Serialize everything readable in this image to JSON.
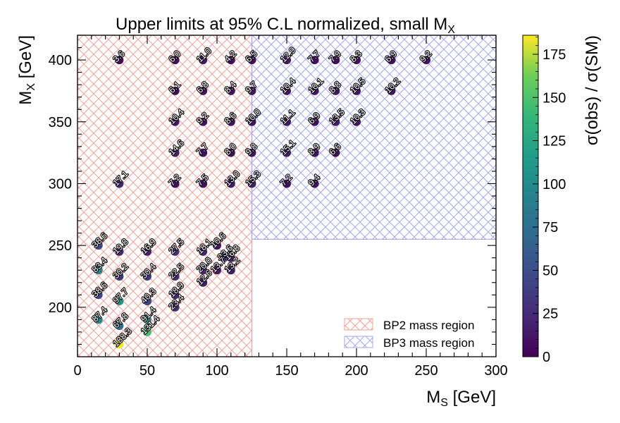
{
  "chart_data": {
    "type": "scatter",
    "title": "Upper limits at 95% C.L normalized, small M",
    "title_subscript": "X",
    "xlabel": "M",
    "xlabel_subscript": "S",
    "xlabel_unit": " [GeV]",
    "ylabel": "M",
    "ylabel_subscript": "X",
    "ylabel_unit": " [GeV]",
    "colorbar_label": "σ(obs) / σ(SM)",
    "colormap": "viridis",
    "xlim": [
      0,
      300
    ],
    "ylim": [
      160,
      420
    ],
    "clim": [
      0,
      186
    ],
    "xticks": [
      "0",
      "50",
      "100",
      "150",
      "200",
      "250",
      "300"
    ],
    "yticks": [
      "200",
      "250",
      "300",
      "350",
      "400"
    ],
    "cticks": [
      "0",
      "25",
      "50",
      "75",
      "100",
      "125",
      "150",
      "175"
    ],
    "grid": false,
    "regions": [
      {
        "name": "BP2 mass region",
        "color": "#f4a09a",
        "x": [
          0,
          125
        ],
        "y": [
          160,
          420
        ]
      },
      {
        "name": "BP3 mass region",
        "color": "#a6a6f0",
        "x": [
          125,
          300
        ],
        "y": [
          255,
          420
        ]
      }
    ],
    "legend_position": "bottom-right",
    "points": [
      {
        "x": 30,
        "y": 400,
        "v": 3.6,
        "label": "3.6"
      },
      {
        "x": 70,
        "y": 400,
        "v": 6.0,
        "label": "6.0"
      },
      {
        "x": 90,
        "y": 400,
        "v": 11.0,
        "label": "11.0"
      },
      {
        "x": 110,
        "y": 400,
        "v": 4.2,
        "label": "4.2"
      },
      {
        "x": 125,
        "y": 400,
        "v": 6.5,
        "label": "6.5"
      },
      {
        "x": 150,
        "y": 400,
        "v": 12.9,
        "label": "12.9"
      },
      {
        "x": 170,
        "y": 400,
        "v": 7.7,
        "label": "7.7"
      },
      {
        "x": 185,
        "y": 400,
        "v": 7.9,
        "label": "7.9"
      },
      {
        "x": 200,
        "y": 400,
        "v": 8.3,
        "label": "8.3"
      },
      {
        "x": 225,
        "y": 400,
        "v": 6.9,
        "label": "6.9"
      },
      {
        "x": 250,
        "y": 400,
        "v": 9.2,
        "label": "9.2"
      },
      {
        "x": 70,
        "y": 375,
        "v": 6.1,
        "label": "6.1"
      },
      {
        "x": 90,
        "y": 375,
        "v": 6.8,
        "label": "6.8"
      },
      {
        "x": 110,
        "y": 375,
        "v": 8.4,
        "label": "8.4"
      },
      {
        "x": 125,
        "y": 375,
        "v": 9.7,
        "label": "9.7"
      },
      {
        "x": 150,
        "y": 375,
        "v": 10.4,
        "label": "10.4"
      },
      {
        "x": 170,
        "y": 375,
        "v": 10.1,
        "label": "10.1"
      },
      {
        "x": 185,
        "y": 375,
        "v": 8.8,
        "label": "8.8"
      },
      {
        "x": 200,
        "y": 375,
        "v": 10.5,
        "label": "10.5"
      },
      {
        "x": 225,
        "y": 375,
        "v": 10.2,
        "label": "10.2"
      },
      {
        "x": 70,
        "y": 350,
        "v": 10.4,
        "label": "10.4"
      },
      {
        "x": 90,
        "y": 350,
        "v": 9.2,
        "label": "9.2"
      },
      {
        "x": 110,
        "y": 350,
        "v": 8.6,
        "label": "8.6"
      },
      {
        "x": 125,
        "y": 350,
        "v": 10.0,
        "label": "10.0"
      },
      {
        "x": 150,
        "y": 350,
        "v": 11.1,
        "label": "11.1"
      },
      {
        "x": 170,
        "y": 350,
        "v": 6.9,
        "label": "6.9"
      },
      {
        "x": 185,
        "y": 350,
        "v": 13.5,
        "label": "13.5"
      },
      {
        "x": 200,
        "y": 350,
        "v": 10.3,
        "label": "10.3"
      },
      {
        "x": 70,
        "y": 325,
        "v": 14.6,
        "label": "14.6"
      },
      {
        "x": 90,
        "y": 325,
        "v": 7.7,
        "label": "7.7"
      },
      {
        "x": 110,
        "y": 325,
        "v": 8.0,
        "label": "8.0"
      },
      {
        "x": 125,
        "y": 325,
        "v": 9.8,
        "label": "9.8"
      },
      {
        "x": 150,
        "y": 325,
        "v": 15.1,
        "label": "15.1"
      },
      {
        "x": 170,
        "y": 325,
        "v": 8.9,
        "label": "8.9"
      },
      {
        "x": 185,
        "y": 325,
        "v": 6.6,
        "label": "6.6"
      },
      {
        "x": 30,
        "y": 300,
        "v": 17.1,
        "label": "17.1"
      },
      {
        "x": 70,
        "y": 300,
        "v": 7.2,
        "label": "7.2"
      },
      {
        "x": 90,
        "y": 300,
        "v": 7.5,
        "label": "7.5"
      },
      {
        "x": 110,
        "y": 300,
        "v": 13.0,
        "label": "13.0"
      },
      {
        "x": 125,
        "y": 300,
        "v": 15.3,
        "label": "15.3"
      },
      {
        "x": 150,
        "y": 300,
        "v": 7.2,
        "label": "7.2"
      },
      {
        "x": 170,
        "y": 300,
        "v": 9.4,
        "label": "9.4"
      },
      {
        "x": 15,
        "y": 250,
        "v": 38.6,
        "label": "38.6"
      },
      {
        "x": 30,
        "y": 245,
        "v": 19.8,
        "label": "19.8"
      },
      {
        "x": 50,
        "y": 245,
        "v": 16.9,
        "label": "16.9"
      },
      {
        "x": 70,
        "y": 245,
        "v": 27.5,
        "label": "27.5"
      },
      {
        "x": 90,
        "y": 245,
        "v": 18.1,
        "label": "18.1"
      },
      {
        "x": 100,
        "y": 250,
        "v": 10.6,
        "label": "10.6"
      },
      {
        "x": 110,
        "y": 240,
        "v": 16.8,
        "label": "16.8"
      },
      {
        "x": 105,
        "y": 240,
        "v": 23.6,
        "label": "23.6"
      },
      {
        "x": 90,
        "y": 230,
        "v": 20.0,
        "label": "20.0"
      },
      {
        "x": 110,
        "y": 230,
        "v": 13.2,
        "label": "13.2"
      },
      {
        "x": 100,
        "y": 230,
        "v": 13.7,
        "label": "13.7"
      },
      {
        "x": 90,
        "y": 220,
        "v": 12.6,
        "label": "12.6"
      },
      {
        "x": 15,
        "y": 230,
        "v": 83.4,
        "label": "83.4"
      },
      {
        "x": 30,
        "y": 225,
        "v": 30.2,
        "label": "30.2"
      },
      {
        "x": 50,
        "y": 225,
        "v": 30.4,
        "label": "30.4"
      },
      {
        "x": 70,
        "y": 225,
        "v": 22.5,
        "label": "22.5"
      },
      {
        "x": 15,
        "y": 210,
        "v": 38.6,
        "label": "38.6"
      },
      {
        "x": 30,
        "y": 205,
        "v": 97.7,
        "label": "97.7"
      },
      {
        "x": 50,
        "y": 205,
        "v": 40.3,
        "label": "40.3"
      },
      {
        "x": 70,
        "y": 210,
        "v": 18.9,
        "label": "18.9"
      },
      {
        "x": 70,
        "y": 200,
        "v": 23.4,
        "label": "23.4"
      },
      {
        "x": 15,
        "y": 190,
        "v": 87.4,
        "label": "87.4"
      },
      {
        "x": 30,
        "y": 185,
        "v": 67.8,
        "label": "67.8"
      },
      {
        "x": 50,
        "y": 190,
        "v": 91.4,
        "label": "91.4"
      },
      {
        "x": 50,
        "y": 180,
        "v": 131.4,
        "label": "131.4"
      },
      {
        "x": 30,
        "y": 170,
        "v": 188.3,
        "label": "188.3"
      }
    ]
  }
}
